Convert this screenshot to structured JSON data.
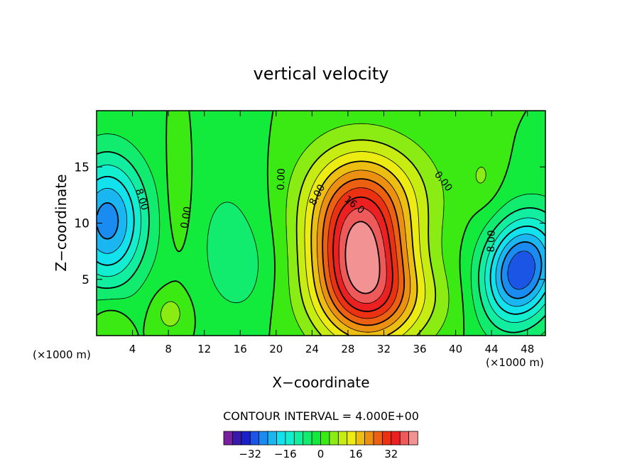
{
  "chart_data": {
    "type": "contour",
    "title": "vertical velocity",
    "xlabel": "X−coordinate",
    "ylabel": "Z−coordinate",
    "x_unit_left": "(×1000 m)",
    "x_unit_right": "(×1000 m)",
    "xlim": [
      0,
      50
    ],
    "ylim": [
      0,
      20
    ],
    "x_ticks": [
      4,
      8,
      12,
      16,
      20,
      24,
      28,
      32,
      36,
      40,
      44,
      48
    ],
    "y_ticks": [
      5,
      10,
      15
    ],
    "contour_interval_text": "CONTOUR INTERVAL = 4.000E+00",
    "contour_labels": [
      {
        "text": "8.00",
        "x": 5.0,
        "y": 12.1,
        "angle": 72
      },
      {
        "text": "0.00",
        "x": 10.0,
        "y": 10.5,
        "angle": -80
      },
      {
        "text": "0.00",
        "x": 20.6,
        "y": 13.9,
        "angle": -88
      },
      {
        "text": "8.00",
        "x": 24.6,
        "y": 12.5,
        "angle": -62
      },
      {
        "text": "16.0",
        "x": 28.7,
        "y": 11.6,
        "angle": 38
      },
      {
        "text": "0.00",
        "x": 38.6,
        "y": 13.7,
        "angle": 52
      },
      {
        "text": "8.00",
        "x": 44.0,
        "y": 8.4,
        "angle": -88
      }
    ],
    "fields": [
      {
        "name": "updraft_main",
        "value": 40,
        "x": 29.5,
        "y": 6.8,
        "sx": 3.8,
        "sy": 4.8,
        "tilt": 12
      },
      {
        "name": "updraft_top",
        "value": 12,
        "x": 30.5,
        "y": 12.8,
        "sx": 5.0,
        "sy": 3.4,
        "tilt": 0
      },
      {
        "name": "updraft_base",
        "value": 8,
        "x": 32.0,
        "y": 3.0,
        "sx": 5.5,
        "sy": 2.5,
        "tilt": 0
      },
      {
        "name": "downdraft_left",
        "value": -26,
        "x": 1.2,
        "y": 10.2,
        "sx": 3.0,
        "sy": 4.0,
        "tilt": 0
      },
      {
        "name": "downdraft_right",
        "value": -32,
        "x": 47.3,
        "y": 5.8,
        "sx": 2.8,
        "sy": 3.5,
        "tilt": -30
      },
      {
        "name": "weak_up_left",
        "value": 5,
        "x": 9.2,
        "y": 12.5,
        "sx": 1.0,
        "sy": 3.5,
        "tilt": 0
      },
      {
        "name": "weak_down_mid",
        "value": -4,
        "x": 14.5,
        "y": 10.0,
        "sx": 3.5,
        "sy": 5.0,
        "tilt": 0
      },
      {
        "name": "weak_down_low",
        "value": -4,
        "x": 16.0,
        "y": 5.5,
        "sx": 2.5,
        "sy": 3.0,
        "tilt": 0
      },
      {
        "name": "weak_up_corner",
        "value": 5,
        "x": 1.5,
        "y": 1.0,
        "sx": 1.5,
        "sy": 1.5,
        "tilt": 0
      },
      {
        "name": "weak_up_small",
        "value": 6,
        "x": 8.2,
        "y": 2.0,
        "sx": 1.4,
        "sy": 1.4,
        "tilt": 0
      },
      {
        "name": "weak_up_right",
        "value": 4,
        "x": 43.0,
        "y": 14.2,
        "sx": 1.3,
        "sy": 1.8,
        "tilt": 0
      }
    ],
    "colorbar": {
      "colors": [
        "#7a1fa0",
        "#3a1aaa",
        "#1a20c8",
        "#1a55e6",
        "#1a8bf0",
        "#1ab6f2",
        "#12e2ee",
        "#12eecf",
        "#12eea0",
        "#12ec6e",
        "#12ea3c",
        "#3aea12",
        "#8aec12",
        "#c6ec12",
        "#ecec12",
        "#ecbe12",
        "#ec9012",
        "#ec6012",
        "#ec3012",
        "#ec2020",
        "#ee5a5a",
        "#f29292"
      ],
      "tick_labels": [
        "−32",
        "−16",
        "0",
        "16",
        "32"
      ],
      "tick_values": [
        -32,
        -16,
        0,
        16,
        32
      ],
      "vmin": -44,
      "vmax": 44
    }
  }
}
